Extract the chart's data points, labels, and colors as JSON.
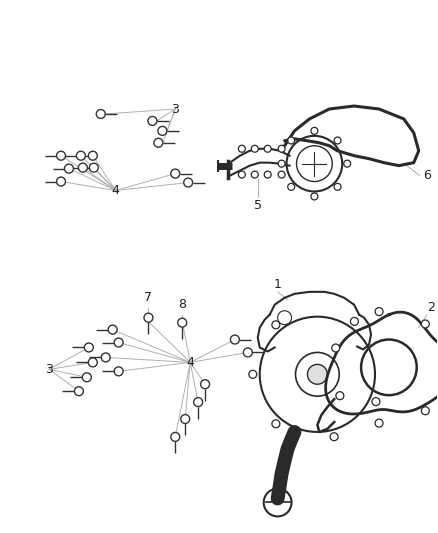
{
  "background_color": "#ffffff",
  "fig_width": 4.38,
  "fig_height": 5.33,
  "dpi": 100,
  "line_color": "#b0b0b0",
  "part_color": "#2a2a2a",
  "label_color": "#222222",
  "bolt_color": "#333333"
}
